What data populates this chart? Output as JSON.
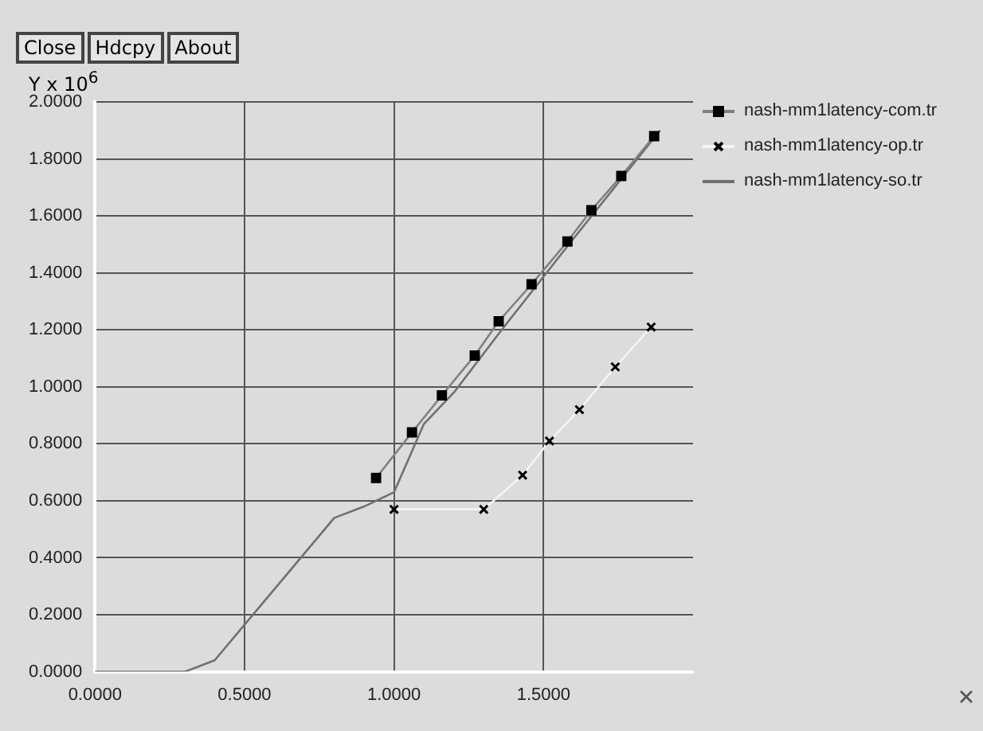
{
  "chart_data": {
    "type": "line",
    "ylabel": "Y x 10$^{6}$",
    "annotations": [
      "Close",
      "Hdcpy",
      "About"
    ],
    "xlim": [
      0,
      2.0
    ],
    "xticks": [
      {
        "value": 0,
        "label": "0.0000"
      },
      {
        "value": 0.5,
        "label": "0.5000"
      },
      {
        "value": 1,
        "label": "1.0000"
      },
      {
        "value": 1.5,
        "label": "1.5000"
      }
    ],
    "ylim": [
      0,
      2.0
    ],
    "yticks": [
      {
        "value": 0,
        "label": "0.0000"
      },
      {
        "value": 0.2,
        "label": "0.2000"
      },
      {
        "value": 0.4,
        "label": "0.4000"
      },
      {
        "value": 0.6,
        "label": "0.6000"
      },
      {
        "value": 0.8,
        "label": "0.8000"
      },
      {
        "value": 1.0,
        "label": "1.0000"
      },
      {
        "value": 1.2,
        "label": "1.2000"
      },
      {
        "value": 1.4,
        "label": "1.4000"
      },
      {
        "value": 1.6,
        "label": "1.6000"
      },
      {
        "value": 1.8,
        "label": "1.8000"
      },
      {
        "value": 2.0,
        "label": "2.0000"
      }
    ],
    "grid": true,
    "legend": "top right",
    "series": [
      {
        "name": "nash-mm1latency-com.tr",
        "color": "#808080",
        "marker": "square",
        "x": [
          0.94,
          1.06,
          1.16,
          1.27,
          1.35,
          1.46,
          1.58,
          1.66,
          1.76,
          1.87
        ],
        "values": [
          0.68,
          0.84,
          0.97,
          1.11,
          1.23,
          1.36,
          1.51,
          1.62,
          1.74,
          1.88
        ]
      },
      {
        "name": "nash-mm1latency-op.tr",
        "color": "#f4f4f4",
        "marker": "cross",
        "x": [
          1.0,
          1.3,
          1.43,
          1.52,
          1.62,
          1.74,
          1.86
        ],
        "values": [
          0.57,
          0.57,
          0.69,
          0.81,
          0.92,
          1.07,
          1.21
        ]
      },
      {
        "name": "nash-mm1latency-so.tr",
        "color": "#707070",
        "marker": "none",
        "x": [
          0,
          0.3,
          0.4,
          0.6,
          0.8,
          0.9,
          1.0,
          1.05,
          1.1,
          1.2,
          1.36,
          1.6,
          1.89
        ],
        "values": [
          0,
          0,
          0.04,
          0.29,
          0.54,
          0.58,
          0.63,
          0.75,
          0.87,
          0.98,
          1.2,
          1.52,
          1.9
        ]
      }
    ]
  }
}
